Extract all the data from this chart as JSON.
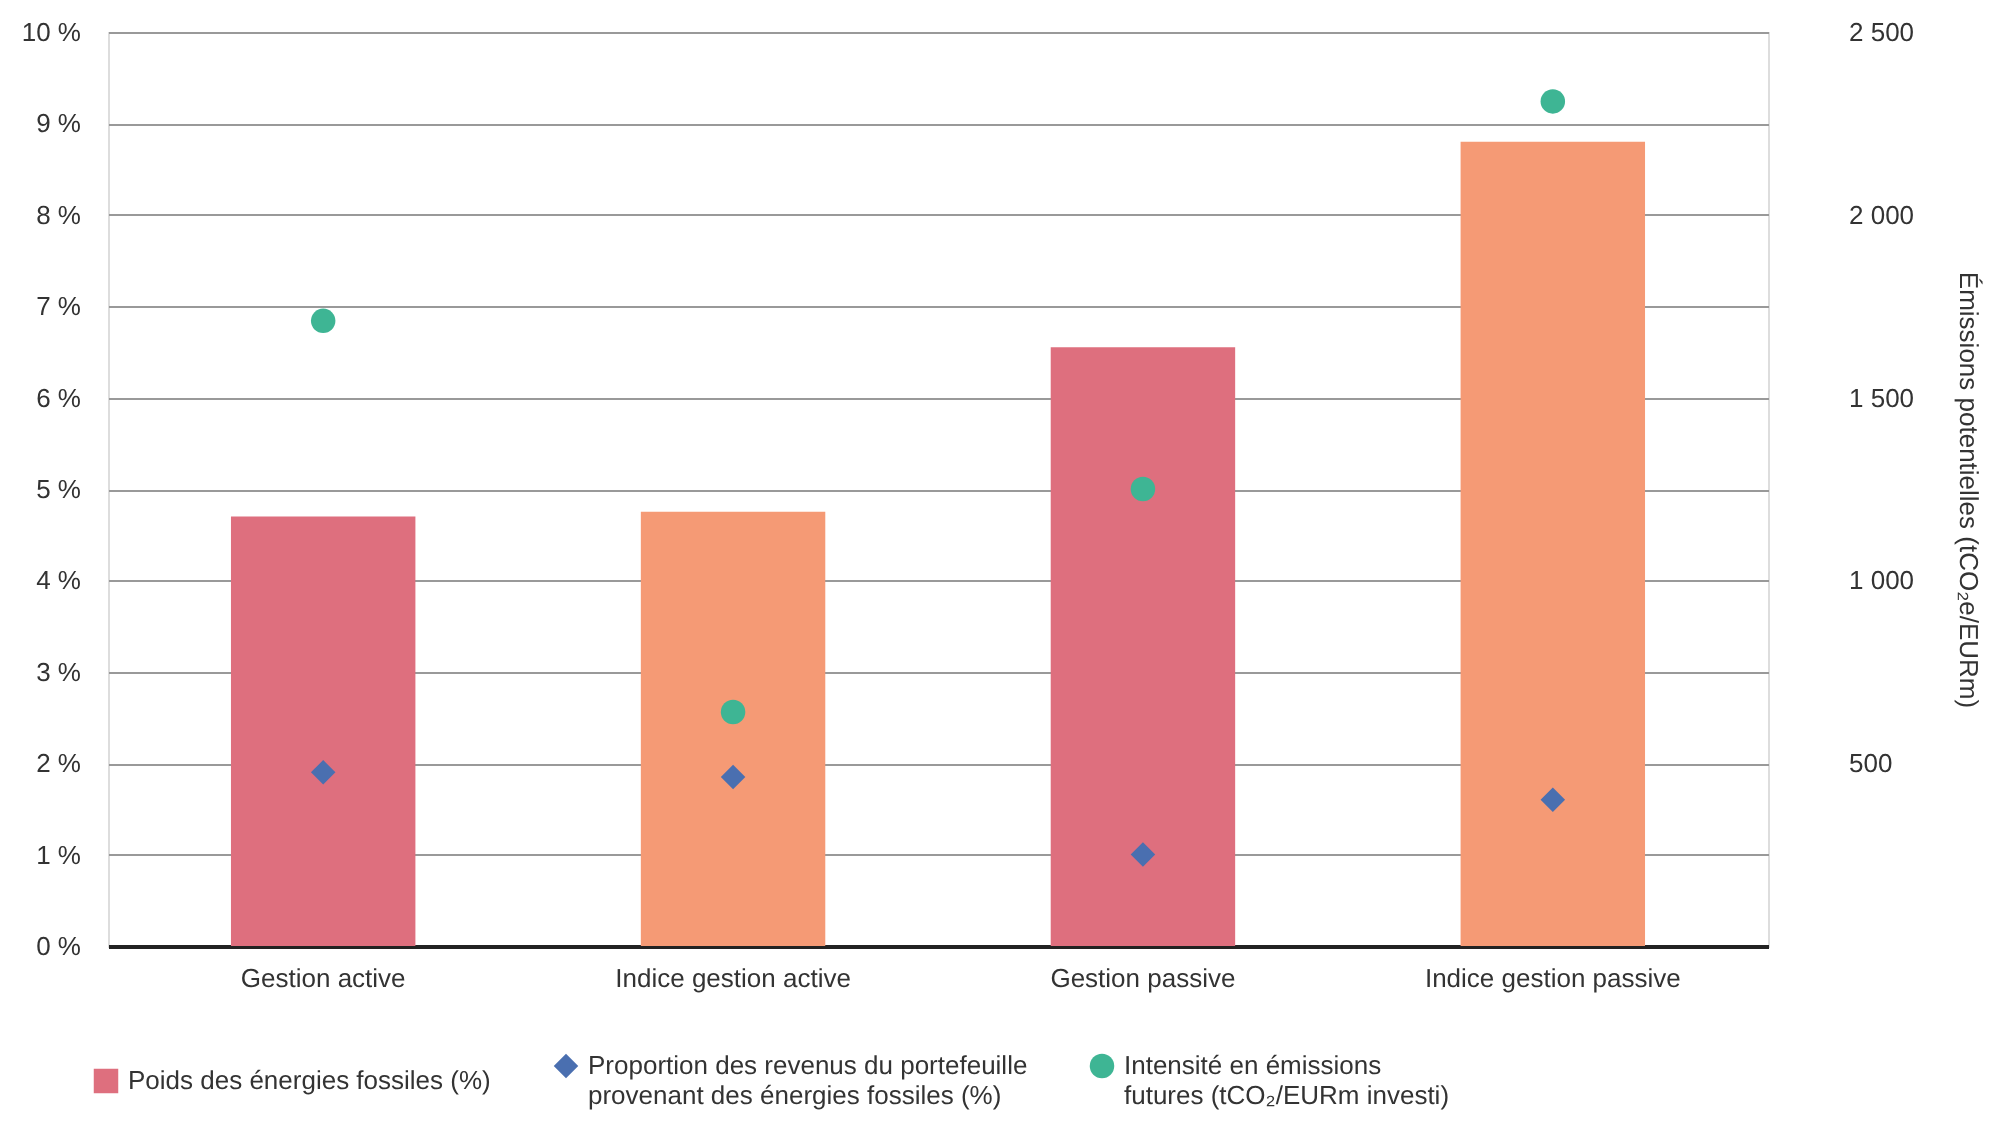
{
  "chart_data": {
    "type": "bar",
    "categories": [
      "Gestion active",
      "Indice gestion active",
      "Gestion passive",
      "Indice gestion passive"
    ],
    "ylim": [
      0,
      10
    ],
    "yticks": [
      {
        "value": 0,
        "label": "0 %"
      },
      {
        "value": 1,
        "label": "1 %"
      },
      {
        "value": 2,
        "label": "2 %"
      },
      {
        "value": 3,
        "label": "3 %"
      },
      {
        "value": 4,
        "label": "4 %"
      },
      {
        "value": 5,
        "label": "5 %"
      },
      {
        "value": 6,
        "label": "6 %"
      },
      {
        "value": 7,
        "label": "7 %"
      },
      {
        "value": 8,
        "label": "8 %"
      },
      {
        "value": 9,
        "label": "9 %"
      },
      {
        "value": 10,
        "label": "10 %"
      }
    ],
    "y2label": "Émissions potentielles (tCO₂e/EURm)",
    "y2lim": [
      0,
      2500
    ],
    "y2ticks": [
      500,
      {
        "value": 1000,
        "label": "1 000"
      },
      {
        "value": 1500,
        "label": "1 500"
      },
      {
        "value": 2000,
        "label": "2 000"
      },
      {
        "value": 2500,
        "label": "2 500"
      }
    ],
    "series": [
      {
        "name": "Poids des énergies fossiles (%)",
        "color": "#de6f7e",
        "colors": [
          "#de6f7e",
          "#f59a75",
          "#de6f7e",
          "#f59a75"
        ],
        "values": [
          4.7,
          4.75,
          6.55,
          8.8
        ]
      },
      {
        "name": "Proportion des revenus du portefeuille provenant des énergies fossiles (%)",
        "type": "scatter",
        "marker": "diamond",
        "color": "#4a6fb0",
        "values": [
          1.9,
          1.85,
          1.0,
          1.6
        ]
      },
      {
        "name": "Intensité en émissions futures (tCO₂/EURm investi)",
        "type": "scatter",
        "marker": "circle",
        "axis": "y2",
        "color": "#3eb594",
        "values": [
          1710,
          640,
          1250,
          2310
        ]
      }
    ],
    "grid": "y",
    "legend": "bottom"
  }
}
